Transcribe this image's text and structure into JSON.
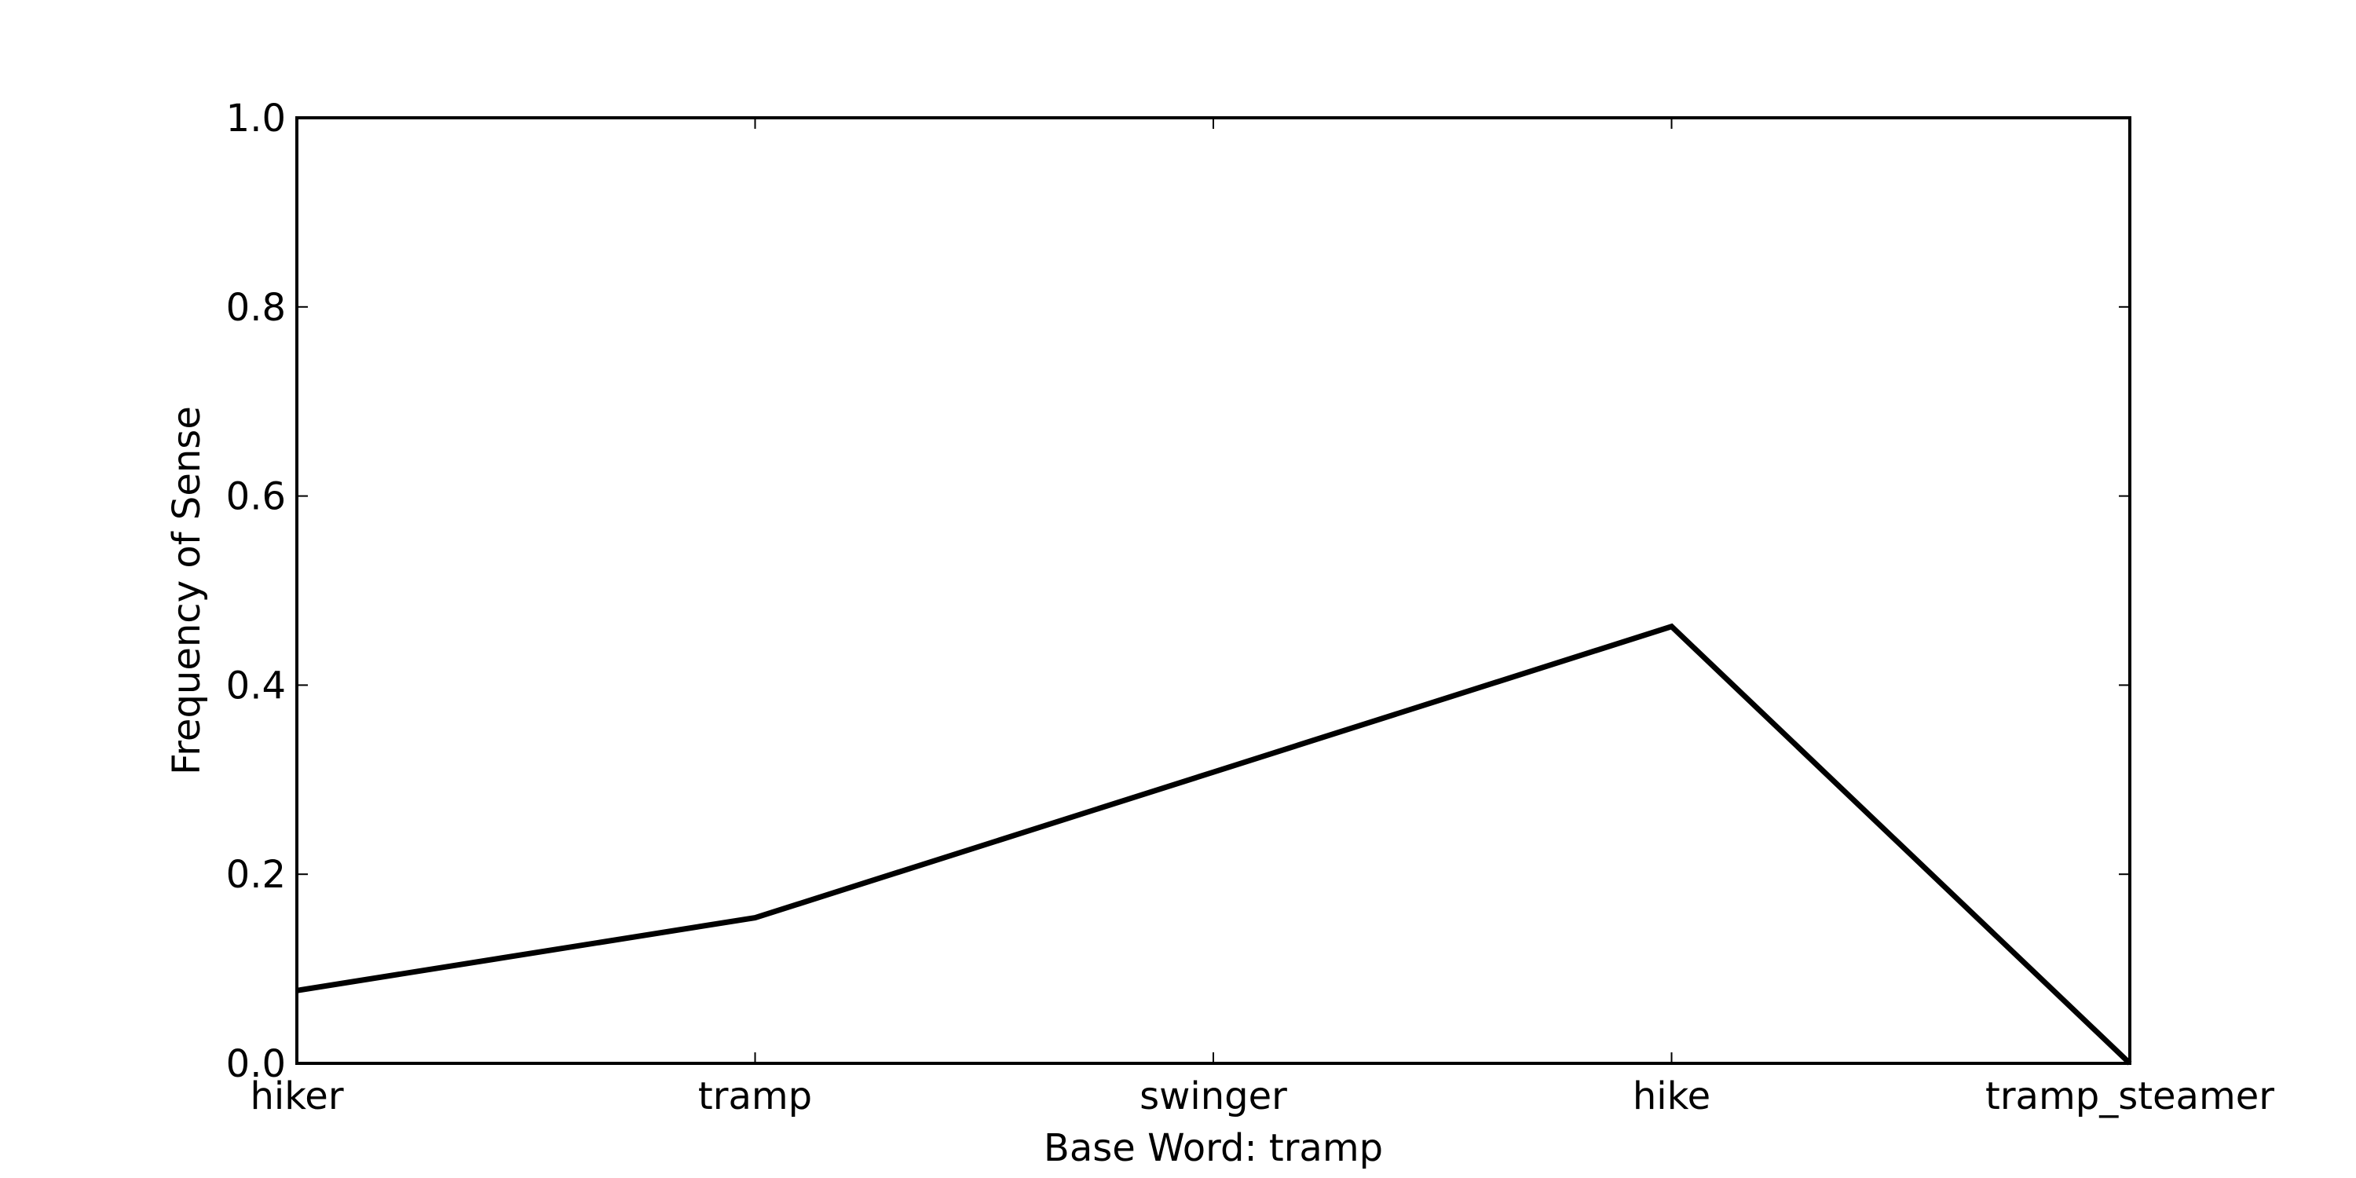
{
  "chart_data": {
    "type": "line",
    "title": "",
    "xlabel": "Base Word: tramp",
    "ylabel": "Frequency of Sense",
    "categories": [
      "hiker",
      "tramp",
      "swinger",
      "hike",
      "tramp_steamer"
    ],
    "series": [
      {
        "values": [
          0.077,
          0.154,
          0.308,
          0.462,
          0.0
        ]
      }
    ],
    "ylim": [
      0,
      1
    ],
    "yticks": [
      "0.0",
      "0.2",
      "0.4",
      "0.6",
      "0.8",
      "1.0"
    ],
    "grid": false,
    "line_color": "#000000"
  }
}
